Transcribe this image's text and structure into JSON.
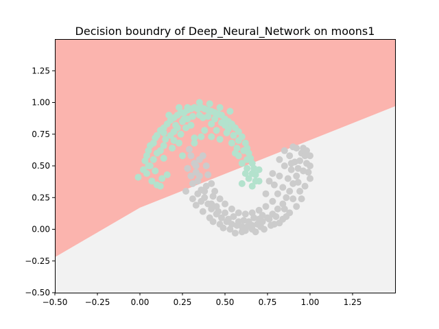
{
  "chart_data": {
    "type": "scatter",
    "title": "Decision boundry of Deep_Neural_Network on moons1",
    "xlabel": "",
    "ylabel": "",
    "xlim": [
      -0.5,
      1.5
    ],
    "ylim": [
      -0.5,
      1.5
    ],
    "x_ticks": [
      -0.5,
      -0.25,
      0.0,
      0.25,
      0.5,
      0.75,
      1.0,
      1.25
    ],
    "x_tick_labels": [
      "−0.50",
      "−0.25",
      "0.00",
      "0.25",
      "0.50",
      "0.75",
      "1.00",
      "1.25"
    ],
    "y_ticks": [
      -0.5,
      -0.25,
      0.0,
      0.25,
      0.5,
      0.75,
      1.0,
      1.25
    ],
    "y_tick_labels": [
      "−0.50",
      "−0.25",
      "0.00",
      "0.25",
      "0.50",
      "0.75",
      "1.00",
      "1.25"
    ],
    "grid": false,
    "decision_boundary": {
      "line": [
        [
          -0.5,
          -0.22
        ],
        [
          0.0,
          0.17
        ],
        [
          1.5,
          0.97
        ]
      ],
      "region_above_color": "#fbb4ae",
      "region_below_color": "#f2f2f2"
    },
    "series": [
      {
        "color": "#b3e2cd",
        "points": [
          [
            -0.01,
            0.41
          ],
          [
            0.02,
            0.47
          ],
          [
            0.03,
            0.54
          ],
          [
            0.04,
            0.58
          ],
          [
            0.05,
            0.62
          ],
          [
            0.06,
            0.66
          ],
          [
            0.08,
            0.68
          ],
          [
            0.09,
            0.72
          ],
          [
            0.1,
            0.74
          ],
          [
            0.12,
            0.78
          ],
          [
            0.14,
            0.8
          ],
          [
            0.16,
            0.83
          ],
          [
            0.18,
            0.86
          ],
          [
            0.2,
            0.88
          ],
          [
            0.22,
            0.9
          ],
          [
            0.24,
            0.92
          ],
          [
            0.26,
            0.92
          ],
          [
            0.28,
            0.94
          ],
          [
            0.3,
            0.95
          ],
          [
            0.32,
            0.96
          ],
          [
            0.34,
            0.95
          ],
          [
            0.36,
            0.96
          ],
          [
            0.38,
            0.95
          ],
          [
            0.4,
            0.94
          ],
          [
            0.42,
            0.93
          ],
          [
            0.44,
            0.92
          ],
          [
            0.46,
            0.91
          ],
          [
            0.48,
            0.9
          ],
          [
            0.5,
            0.87
          ],
          [
            0.52,
            0.85
          ],
          [
            0.54,
            0.83
          ],
          [
            0.56,
            0.8
          ],
          [
            0.58,
            0.77
          ],
          [
            0.6,
            0.73
          ],
          [
            0.62,
            0.68
          ],
          [
            0.63,
            0.64
          ],
          [
            0.64,
            0.6
          ],
          [
            0.65,
            0.56
          ],
          [
            0.66,
            0.52
          ],
          [
            0.67,
            0.48
          ],
          [
            0.68,
            0.43
          ],
          [
            0.68,
            0.38
          ],
          [
            0.66,
            0.34
          ],
          [
            0.64,
            0.4
          ],
          [
            0.62,
            0.44
          ],
          [
            0.6,
            0.52
          ],
          [
            0.58,
            0.58
          ],
          [
            0.56,
            0.6
          ],
          [
            0.04,
            0.44
          ],
          [
            0.06,
            0.5
          ],
          [
            0.08,
            0.55
          ],
          [
            0.1,
            0.6
          ],
          [
            0.12,
            0.62
          ],
          [
            0.14,
            0.66
          ],
          [
            0.15,
            0.71
          ],
          [
            0.18,
            0.74
          ],
          [
            0.2,
            0.77
          ],
          [
            0.22,
            0.8
          ],
          [
            0.25,
            0.85
          ],
          [
            0.28,
            0.87
          ],
          [
            0.31,
            0.89
          ],
          [
            0.35,
            0.9
          ],
          [
            0.4,
            0.89
          ],
          [
            0.44,
            0.87
          ],
          [
            0.48,
            0.84
          ],
          [
            0.52,
            0.79
          ],
          [
            0.55,
            0.74
          ],
          [
            0.58,
            0.7
          ],
          [
            0.61,
            0.62
          ],
          [
            0.63,
            0.55
          ],
          [
            0.07,
            0.38
          ],
          [
            0.1,
            0.35
          ],
          [
            0.13,
            0.4
          ],
          [
            0.16,
            0.43
          ],
          [
            0.12,
            0.34
          ],
          [
            0.25,
            0.58
          ],
          [
            0.32,
            0.72
          ],
          [
            0.38,
            0.78
          ],
          [
            0.45,
            0.78
          ],
          [
            0.2,
            0.7
          ],
          [
            0.27,
            0.8
          ],
          [
            0.24,
            0.75
          ],
          [
            0.3,
            0.82
          ],
          [
            0.42,
            0.83
          ],
          [
            0.5,
            0.82
          ],
          [
            0.54,
            0.68
          ],
          [
            0.57,
            0.64
          ],
          [
            0.28,
            0.96
          ],
          [
            0.35,
            1.0
          ],
          [
            0.41,
            0.99
          ],
          [
            0.47,
            0.96
          ],
          [
            0.53,
            0.93
          ],
          [
            0.17,
            0.9
          ],
          [
            0.23,
            0.96
          ],
          [
            0.32,
            0.68
          ],
          [
            0.36,
            0.73
          ],
          [
            0.6,
            0.36
          ],
          [
            0.66,
            0.44
          ],
          [
            0.7,
            0.47
          ],
          [
            0.7,
            0.38
          ],
          [
            0.63,
            0.48
          ],
          [
            0.05,
            0.5
          ],
          [
            0.09,
            0.46
          ],
          [
            0.14,
            0.56
          ],
          [
            0.19,
            0.64
          ],
          [
            0.23,
            0.68
          ],
          [
            0.42,
            0.73
          ],
          [
            0.47,
            0.71
          ],
          [
            0.51,
            0.76
          ],
          [
            0.14,
            0.76
          ],
          [
            0.21,
            0.82
          ],
          [
            0.26,
            0.87
          ],
          [
            0.37,
            0.88
          ],
          [
            0.45,
            0.9
          ]
        ]
      },
      {
        "color": "#cccccc",
        "points": [
          [
            0.3,
            0.58
          ],
          [
            0.32,
            0.52
          ],
          [
            0.33,
            0.45
          ],
          [
            0.34,
            0.38
          ],
          [
            0.36,
            0.31
          ],
          [
            0.38,
            0.25
          ],
          [
            0.4,
            0.2
          ],
          [
            0.42,
            0.16
          ],
          [
            0.45,
            0.12
          ],
          [
            0.48,
            0.09
          ],
          [
            0.51,
            0.06
          ],
          [
            0.54,
            0.04
          ],
          [
            0.57,
            0.03
          ],
          [
            0.6,
            0.02
          ],
          [
            0.63,
            0.02
          ],
          [
            0.66,
            0.03
          ],
          [
            0.69,
            0.04
          ],
          [
            0.72,
            0.06
          ],
          [
            0.75,
            0.09
          ],
          [
            0.78,
            0.12
          ],
          [
            0.81,
            0.16
          ],
          [
            0.84,
            0.2
          ],
          [
            0.86,
            0.25
          ],
          [
            0.88,
            0.3
          ],
          [
            0.9,
            0.36
          ],
          [
            0.92,
            0.42
          ],
          [
            0.93,
            0.48
          ],
          [
            0.94,
            0.54
          ],
          [
            0.95,
            0.6
          ],
          [
            0.96,
            0.64
          ],
          [
            0.97,
            0.58
          ],
          [
            0.98,
            0.52
          ],
          [
            0.99,
            0.45
          ],
          [
            1.0,
            0.4
          ],
          [
            0.97,
            0.34
          ],
          [
            0.94,
            0.3
          ],
          [
            0.9,
            0.24
          ],
          [
            0.85,
            0.16
          ],
          [
            0.8,
            0.1
          ],
          [
            0.76,
            0.08
          ],
          [
            0.7,
            0.08
          ],
          [
            0.64,
            0.06
          ],
          [
            0.58,
            0.06
          ],
          [
            0.52,
            0.08
          ],
          [
            0.46,
            0.14
          ],
          [
            0.42,
            0.2
          ],
          [
            0.38,
            0.3
          ],
          [
            0.35,
            0.42
          ],
          [
            0.33,
            0.5
          ],
          [
            0.29,
            0.63
          ],
          [
            0.37,
            0.58
          ],
          [
            0.39,
            0.5
          ],
          [
            0.4,
            0.43
          ],
          [
            0.42,
            0.36
          ],
          [
            0.44,
            0.3
          ],
          [
            0.47,
            0.24
          ],
          [
            0.5,
            0.2
          ],
          [
            0.54,
            0.16
          ],
          [
            0.58,
            0.13
          ],
          [
            0.62,
            0.12
          ],
          [
            0.66,
            0.13
          ],
          [
            0.7,
            0.15
          ],
          [
            0.74,
            0.18
          ],
          [
            0.78,
            0.22
          ],
          [
            0.81,
            0.28
          ],
          [
            0.84,
            0.33
          ],
          [
            0.87,
            0.4
          ],
          [
            0.89,
            0.47
          ],
          [
            0.91,
            0.53
          ],
          [
            0.88,
            0.58
          ],
          [
            0.85,
            0.5
          ],
          [
            0.82,
            0.42
          ],
          [
            0.79,
            0.35
          ],
          [
            0.74,
            0.28
          ],
          [
            0.27,
            0.3
          ],
          [
            0.33,
            0.19
          ],
          [
            0.37,
            0.14
          ],
          [
            0.43,
            0.06
          ],
          [
            0.49,
            0.01
          ],
          [
            0.56,
            -0.03
          ],
          [
            0.62,
            -0.01
          ],
          [
            0.68,
            -0.02
          ],
          [
            0.73,
            0.0
          ],
          [
            0.79,
            0.04
          ],
          [
            0.84,
            0.08
          ],
          [
            0.88,
            0.13
          ],
          [
            0.92,
            0.18
          ],
          [
            0.95,
            0.24
          ],
          [
            1.0,
            0.5
          ],
          [
            1.0,
            0.58
          ],
          [
            0.98,
            0.62
          ],
          [
            0.9,
            0.65
          ],
          [
            0.85,
            0.62
          ],
          [
            0.82,
            0.55
          ],
          [
            0.78,
            0.44
          ],
          [
            0.76,
            0.38
          ],
          [
            0.3,
            0.42
          ],
          [
            0.28,
            0.48
          ],
          [
            0.31,
            0.36
          ],
          [
            0.34,
            0.28
          ],
          [
            0.36,
            0.22
          ],
          [
            0.41,
            0.09
          ],
          [
            0.47,
            0.04
          ],
          [
            0.53,
            0.0
          ],
          [
            0.6,
            -0.02
          ],
          [
            0.66,
            0.0
          ],
          [
            0.71,
            0.02
          ],
          [
            0.77,
            0.03
          ],
          [
            0.82,
            0.05
          ],
          [
            0.86,
            0.1
          ],
          [
            0.93,
            0.37
          ],
          [
            0.96,
            0.46
          ],
          [
            0.92,
            0.64
          ],
          [
            0.89,
            0.52
          ],
          [
            0.55,
            0.1
          ],
          [
            0.61,
            0.07
          ],
          [
            0.67,
            0.09
          ],
          [
            0.72,
            0.11
          ],
          [
            0.45,
            0.18
          ],
          [
            0.5,
            0.13
          ],
          [
            0.35,
            0.55
          ],
          [
            0.31,
            0.24
          ],
          [
            0.39,
            0.34
          ],
          [
            0.43,
            0.26
          ]
        ]
      }
    ]
  }
}
